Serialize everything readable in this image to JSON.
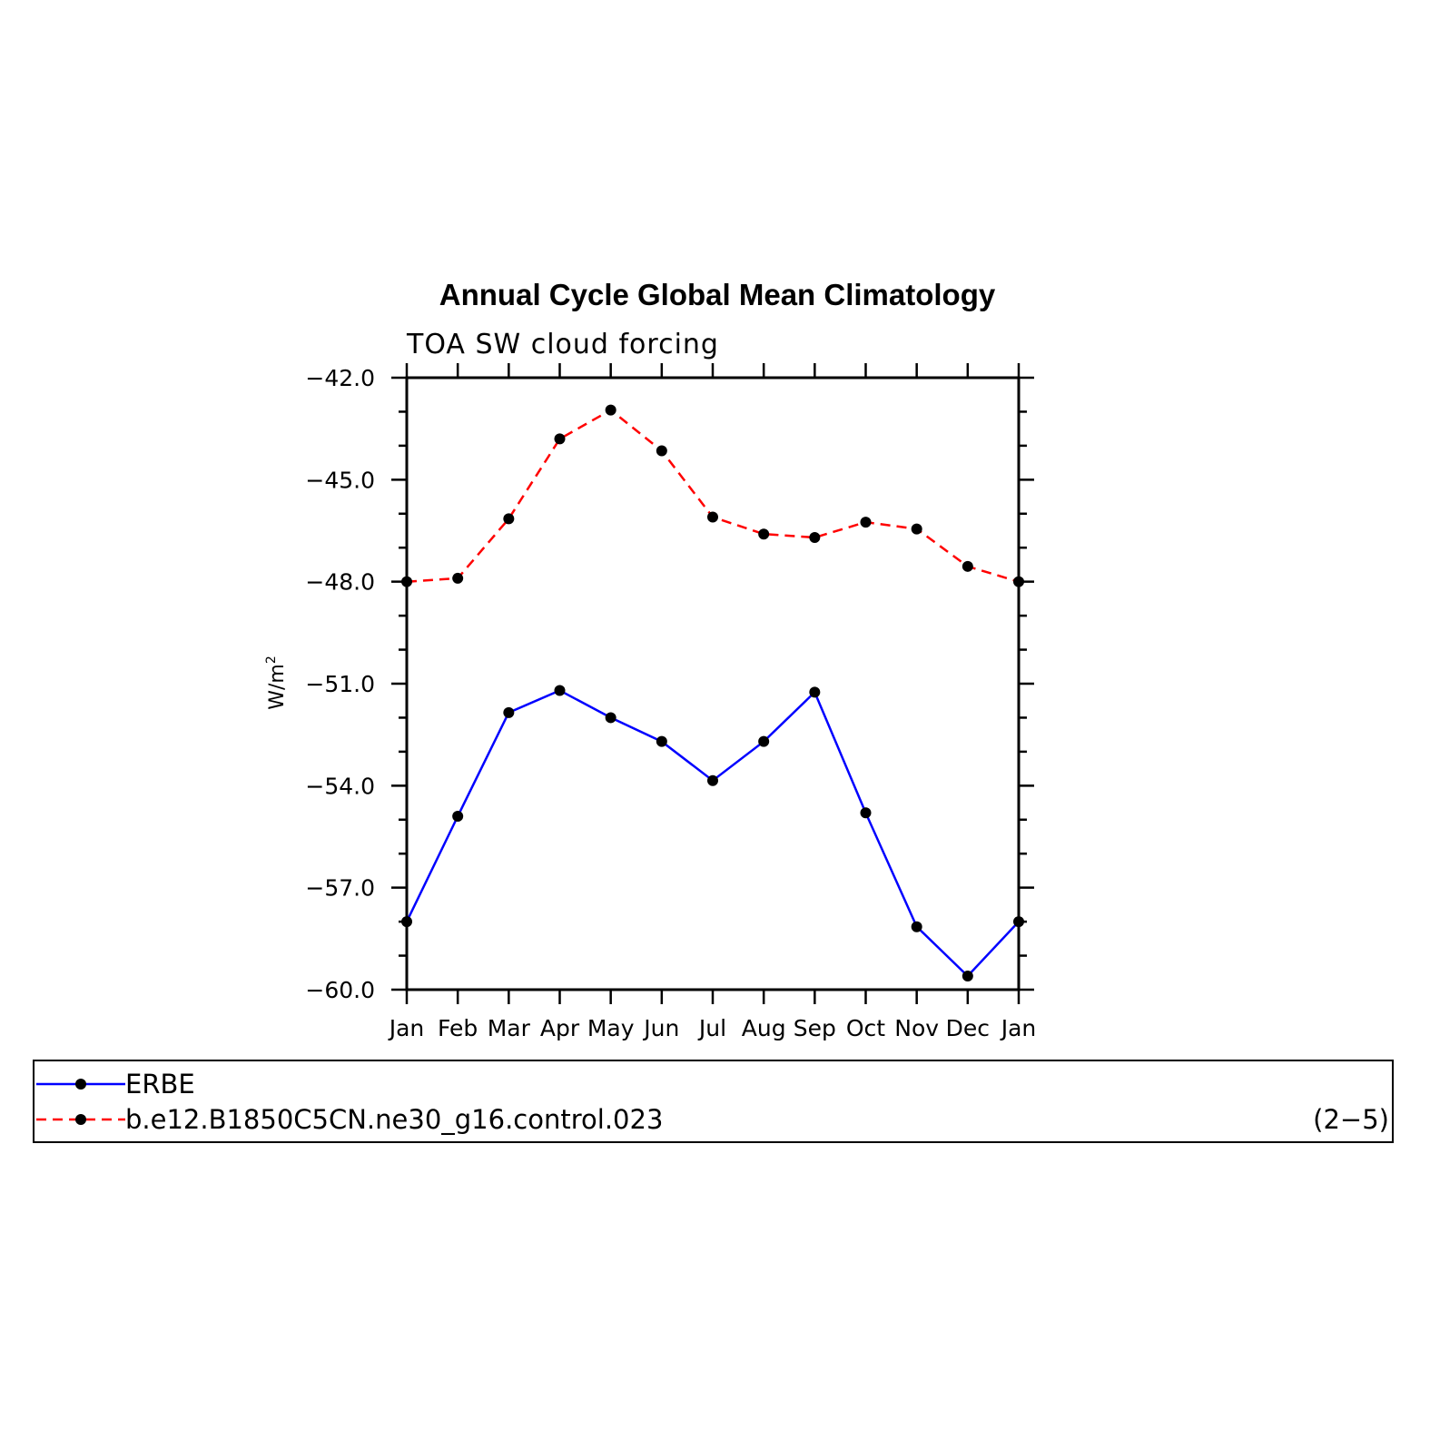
{
  "chart_data": {
    "type": "line",
    "title": "Annual Cycle Global Mean Climatology",
    "subtitle": "TOA SW cloud forcing",
    "ylabel": "W/m",
    "ylabel_sup": "2",
    "categories": [
      "Jan",
      "Feb",
      "Mar",
      "Apr",
      "May",
      "Jun",
      "Jul",
      "Aug",
      "Sep",
      "Oct",
      "Nov",
      "Dec",
      "Jan"
    ],
    "ylim": [
      -60.0,
      -42.0
    ],
    "yticks": [
      -42.0,
      -45.0,
      -48.0,
      -51.0,
      -54.0,
      -57.0,
      -60.0
    ],
    "ytick_labels": [
      "−42.0",
      "−45.0",
      "−48.0",
      "−51.0",
      "−54.0",
      "−57.0",
      "−60.0"
    ],
    "grid": false,
    "legend_position": "bottom",
    "series": [
      {
        "name": "ERBE",
        "color": "#0000ff",
        "style": "solid",
        "values": [
          -58.0,
          -54.9,
          -51.85,
          -51.2,
          -52.0,
          -52.7,
          -53.85,
          -52.7,
          -51.25,
          -54.8,
          -58.15,
          -59.6,
          -58.0
        ]
      },
      {
        "name": "b.e12.B1850C5CN.ne30_g16.control.023",
        "color": "#ff0000",
        "style": "dashed",
        "values": [
          -48.0,
          -47.9,
          -46.15,
          -43.8,
          -42.95,
          -44.15,
          -46.1,
          -46.6,
          -46.7,
          -46.25,
          -46.45,
          -47.55,
          -48.0
        ]
      }
    ],
    "panel_label": "(2−5)"
  }
}
